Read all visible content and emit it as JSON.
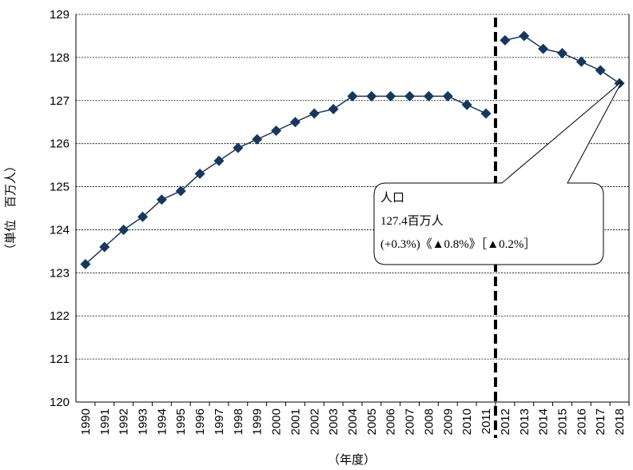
{
  "chart_data": {
    "type": "line",
    "x_label": "（年度）",
    "y_label": "（単位　百万人）",
    "categories": [
      "1990",
      "1991",
      "1992",
      "1993",
      "1994",
      "1995",
      "1996",
      "1997",
      "1998",
      "1999",
      "2000",
      "2001",
      "2002",
      "2003",
      "2004",
      "2005",
      "2006",
      "2007",
      "2008",
      "2009",
      "2010",
      "2011",
      "2012",
      "2013",
      "2014",
      "2015",
      "2016",
      "2017",
      "2018"
    ],
    "series": [
      {
        "color": "#17375e",
        "values": [
          123.2,
          123.6,
          124.0,
          124.3,
          124.7,
          124.9,
          125.3,
          125.6,
          125.9,
          126.1,
          126.3,
          126.5,
          126.7,
          126.8,
          127.1,
          127.1,
          127.1,
          127.1,
          127.1,
          127.1,
          126.9,
          126.7,
          null,
          null,
          null,
          null,
          null,
          null,
          null
        ]
      },
      {
        "color": "#17375e",
        "values": [
          null,
          null,
          null,
          null,
          null,
          null,
          null,
          null,
          null,
          null,
          null,
          null,
          null,
          null,
          null,
          null,
          null,
          null,
          null,
          null,
          null,
          null,
          128.4,
          128.5,
          128.2,
          128.1,
          127.9,
          127.7,
          127.4
        ]
      }
    ],
    "ylim": [
      120,
      129
    ],
    "yticks": [
      120,
      121,
      122,
      123,
      124,
      125,
      126,
      127,
      128,
      129
    ],
    "grid": true,
    "annotation": [
      "人口",
      "127.4百万人",
      "(+0.3%)《▲0.8%》［▲0.2%］"
    ]
  }
}
